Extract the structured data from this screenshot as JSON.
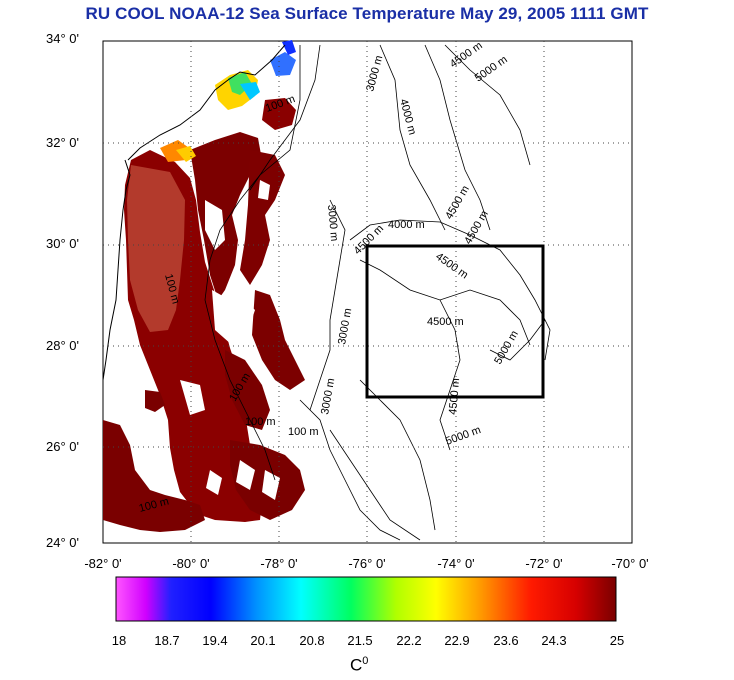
{
  "title": "RU COOL  NOAA-12 Sea Surface Temperature May 29, 2005 1111 GMT",
  "map": {
    "lat_labels": [
      "34° 0'",
      "32° 0'",
      "30° 0'",
      "28° 0'",
      "26° 0'",
      "24° 0'"
    ],
    "lon_labels": [
      "-82° 0'",
      "-80° 0'",
      "-78° 0'",
      "-76° 0'",
      "-74° 0'",
      "-72° 0'",
      "-70° 0'"
    ],
    "lat_range": [
      24,
      34
    ],
    "lon_range": [
      -82,
      -70
    ],
    "grid": "dotted",
    "bathymetry_labels": [
      "100 m",
      "3000 m",
      "4500 m",
      "5000 m",
      "4000 m",
      "4500 m",
      "4500 m",
      "3000 m",
      "4000 m",
      "4500 m",
      "4500 m",
      "4500 m",
      "5000 m",
      "4500 m",
      "5000 m",
      "100 m",
      "100 m",
      "100 m",
      "3000 m",
      "3000 m",
      "100 m",
      "100 m"
    ],
    "study_box": {
      "lon": [
        -76,
        -72
      ],
      "lat": [
        27,
        30
      ]
    }
  },
  "colorbar": {
    "ticks": [
      "18",
      "18.7",
      "19.4",
      "20.1",
      "20.8",
      "21.5",
      "22.2",
      "22.9",
      "23.6",
      "24.3",
      "25"
    ],
    "unit_base": "C",
    "unit_sup": "0",
    "colors": [
      "#ff00ff",
      "#0000ff",
      "#00a0ff",
      "#00ffff",
      "#00ff66",
      "#c8ff00",
      "#ffff00",
      "#ff9900",
      "#ff2200",
      "#ff0000",
      "#7a0000"
    ]
  }
}
